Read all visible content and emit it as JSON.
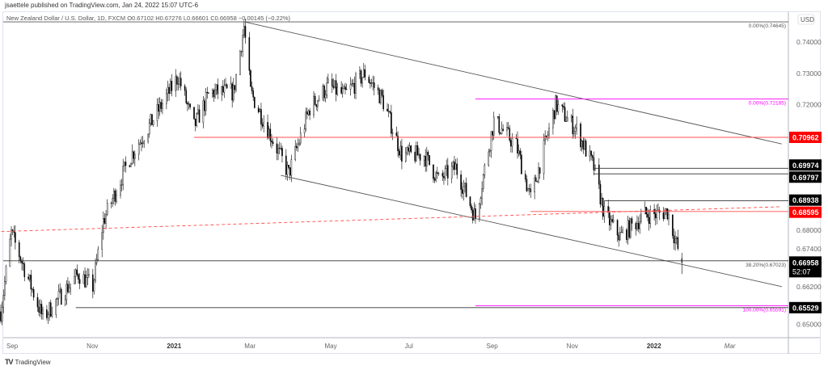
{
  "header": {
    "published": "jsaettele published on TradingView.com, Jan 24, 2022 15:07 UTC-6"
  },
  "legend": {
    "text": "New Zealand Dollar / U.S. Dollar, 1D, FXCM  O0.67102  H0.67276  L0.66601  C0.66958  −0.00145 (−0.22%)"
  },
  "currency_badge": "USD",
  "footer": {
    "logo_text": "TradingView"
  },
  "chart_data": {
    "type": "candlestick",
    "symbol": "NZDUSD",
    "interval": "1D",
    "ohlc_last": {
      "open": 0.67102,
      "high": 0.67276,
      "low": 0.66601,
      "close": 0.66958,
      "change": -0.00145,
      "change_pct": -0.22
    },
    "ylim": [
      0.645,
      0.75
    ],
    "y_ticks": [
      "0.74000",
      "0.73000",
      "0.72000",
      "0.68000",
      "0.67400",
      "0.66200",
      "0.65000"
    ],
    "x_ticks": [
      {
        "label": "Sep",
        "date": "2020-09-01"
      },
      {
        "label": "Nov",
        "date": "2020-11-01"
      },
      {
        "label": "2021",
        "date": "2021-01-01",
        "bold": true
      },
      {
        "label": "Mar",
        "date": "2021-03-01"
      },
      {
        "label": "May",
        "date": "2021-05-01"
      },
      {
        "label": "Jul",
        "date": "2021-07-01"
      },
      {
        "label": "Sep",
        "date": "2021-09-01"
      },
      {
        "label": "Nov",
        "date": "2021-11-01"
      },
      {
        "label": "2022",
        "date": "2022-01-01",
        "bold": true
      },
      {
        "label": "Mar",
        "date": "2022-03-01"
      }
    ],
    "xlim": [
      "2020-08-20",
      "2022-04-10"
    ],
    "price_path": [
      [
        "2020-08-24",
        0.654
      ],
      [
        "2020-09-01",
        0.679
      ],
      [
        "2020-09-25",
        0.652
      ],
      [
        "2020-10-22",
        0.666
      ],
      [
        "2020-11-02",
        0.662
      ],
      [
        "2020-11-10",
        0.683
      ],
      [
        "2020-11-30",
        0.703
      ],
      [
        "2020-12-16",
        0.714
      ],
      [
        "2021-01-06",
        0.729
      ],
      [
        "2021-01-18",
        0.713
      ],
      [
        "2021-01-30",
        0.724
      ],
      [
        "2021-02-17",
        0.724
      ],
      [
        "2021-02-25",
        0.745
      ],
      [
        "2021-03-02",
        0.724
      ],
      [
        "2021-03-22",
        0.706
      ],
      [
        "2021-03-31",
        0.698
      ],
      [
        "2021-04-16",
        0.719
      ],
      [
        "2021-04-30",
        0.726
      ],
      [
        "2021-05-12",
        0.723
      ],
      [
        "2021-05-28",
        0.73
      ],
      [
        "2021-06-10",
        0.722
      ],
      [
        "2021-06-25",
        0.704
      ],
      [
        "2021-07-12",
        0.704
      ],
      [
        "2021-07-23",
        0.696
      ],
      [
        "2021-08-05",
        0.7
      ],
      [
        "2021-08-20",
        0.684
      ],
      [
        "2021-09-03",
        0.715
      ],
      [
        "2021-09-20",
        0.707
      ],
      [
        "2021-10-01",
        0.69
      ],
      [
        "2021-10-20",
        0.72
      ],
      [
        "2021-11-05",
        0.712
      ],
      [
        "2021-11-18",
        0.7
      ],
      [
        "2021-11-26",
        0.685
      ],
      [
        "2021-12-08",
        0.678
      ],
      [
        "2021-12-27",
        0.685
      ],
      [
        "2022-01-04",
        0.685
      ],
      [
        "2022-01-13",
        0.686
      ],
      [
        "2022-01-24",
        0.66958
      ]
    ],
    "levels": [
      {
        "price": 0.74645,
        "color": "#555555",
        "from": "2020-08-20",
        "label": "0.00%(0.74645)",
        "label_color": "#555555"
      },
      {
        "price": 0.72185,
        "color": "#ff00ff",
        "from": "2021-08-20",
        "label": "0.00%(0.72185)",
        "label_color": "#ff00ff"
      },
      {
        "price": 0.70962,
        "color": "#ff4d4d",
        "from": "2021-01-18",
        "tag": "0.70962",
        "tag_bg": "#ff0000"
      },
      {
        "price": 0.69974,
        "color": "#333333",
        "from": "2021-11-18",
        "tag": "0.69974",
        "tag_bg": "#000000"
      },
      {
        "price": 0.69797,
        "color": "#333333",
        "from": "2021-11-18",
        "tag": "0.69797",
        "tag_bg": "#000000"
      },
      {
        "price": 0.68938,
        "color": "#333333",
        "from": "2021-11-26",
        "tag": "0.68938",
        "tag_bg": "#000000"
      },
      {
        "price": 0.68595,
        "color": "#ff4d4d",
        "from": "2021-10-01",
        "tag": "0.68595",
        "tag_bg": "#ff0000"
      },
      {
        "price": 0.67023,
        "color": "#333333",
        "from": "2020-08-20",
        "label": "38.20%(0.67023)",
        "label_color": "#555555"
      },
      {
        "price": 0.65591,
        "color": "#ff00ff",
        "from": "2021-08-20",
        "label": "100.00%(0.65591)",
        "label_color": "#ff00ff"
      },
      {
        "price": 0.65529,
        "color": "#333333",
        "from": "2020-10-20",
        "tag": "0.65529",
        "tag_bg": "#000000"
      }
    ],
    "current_price": {
      "value": "0.66958",
      "countdown": "52:07"
    },
    "trendlines": [
      {
        "from": [
          "2021-02-25",
          0.7465
        ],
        "to": [
          "2022-04-10",
          0.7075
        ],
        "color": "#555555"
      },
      {
        "from": [
          "2021-03-25",
          0.6975
        ],
        "to": [
          "2022-04-10",
          0.662
        ],
        "color": "#555555"
      },
      {
        "from": [
          "2020-08-20",
          0.6795
        ],
        "to": [
          "2022-04-10",
          0.6875
        ],
        "color": "#ff4d4d",
        "dashed": true
      }
    ],
    "colors": {
      "candle": "#000000",
      "background": "#ffffff"
    }
  }
}
